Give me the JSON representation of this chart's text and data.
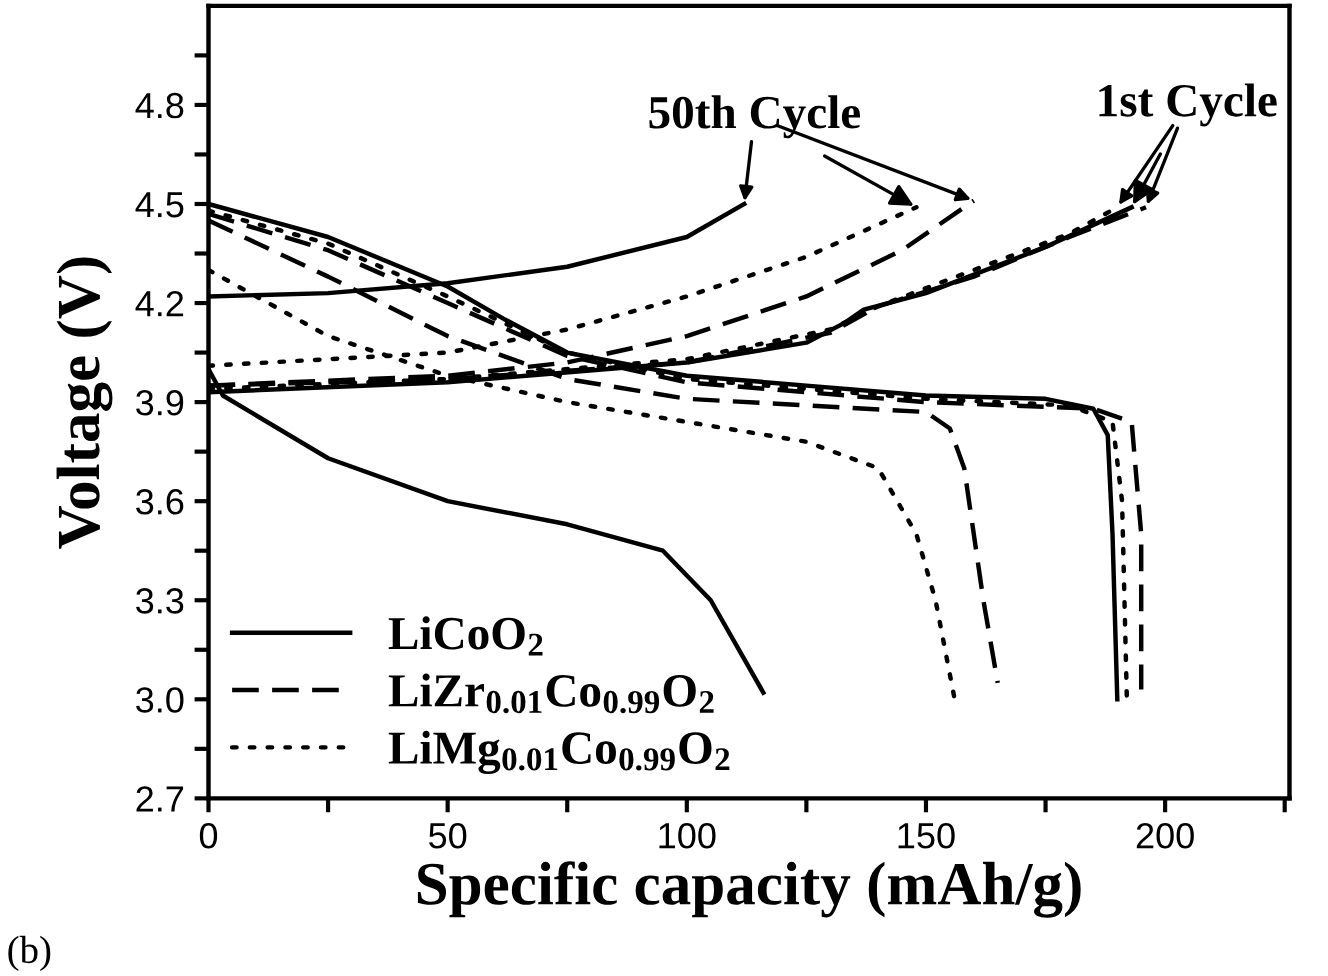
{
  "chart_data": {
    "type": "line",
    "xlabel": "Specific capacity (mAh/g)",
    "ylabel": "Voltage (V)",
    "xlim": [
      0,
      226
    ],
    "ylim": [
      2.7,
      5.1
    ],
    "xticks": [
      0,
      {
        "value": 25,
        "label": null
      },
      50,
      {
        "value": 75,
        "label": null
      },
      100,
      {
        "value": 125,
        "label": null
      },
      150,
      {
        "value": 175,
        "label": null
      },
      200,
      {
        "value": 225,
        "label": null
      }
    ],
    "yticks": [
      2.7,
      {
        "value": 2.85,
        "label": null
      },
      {
        "value": 3.0,
        "label": "3.0"
      },
      {
        "value": 3.15,
        "label": null
      },
      3.3,
      {
        "value": 3.45,
        "label": null
      },
      3.6,
      {
        "value": 3.75,
        "label": null
      },
      3.9,
      {
        "value": 4.05,
        "label": null
      },
      4.2,
      {
        "value": 4.35,
        "label": null
      },
      4.5,
      {
        "value": 4.65,
        "label": null
      },
      4.8,
      {
        "value": 4.95,
        "label": null
      }
    ],
    "grid": false,
    "legend": "bottom left",
    "marker": "none",
    "series": [
      {
        "name": "LiCoO$_{2}$",
        "color": "#000000",
        "line_style": "solid",
        "x": [
          0,
          50,
          100,
          125,
          133,
          137,
          150,
          175,
          190,
          193
        ],
        "values": [
          3.93,
          3.96,
          4.02,
          4.08,
          4.14,
          4.18,
          4.23,
          4.37,
          4.47,
          4.49
        ]
      },
      {
        "name": "LiZr$_{0.01}$Co$_{0.99}$O$_{2}$",
        "color": "#000000",
        "line_style": "dashed",
        "x": [
          0,
          50,
          100,
          130,
          140,
          160,
          180,
          196
        ],
        "values": [
          3.95,
          3.97,
          4.02,
          4.11,
          4.19,
          4.28,
          4.4,
          4.49
        ]
      },
      {
        "name": "LiMg$_{0.01}$Co$_{0.99}$O$_{2}$",
        "color": "#000000",
        "line_style": "dotted",
        "x": [
          0,
          50,
          100,
          130,
          140,
          160,
          180,
          190
        ],
        "values": [
          3.94,
          3.97,
          4.03,
          4.12,
          4.19,
          4.3,
          4.41,
          4.49
        ]
      },
      {
        "color": "#000000",
        "line_style": "solid",
        "x": [
          0,
          25,
          50,
          75,
          100,
          112
        ],
        "values": [
          4.22,
          4.23,
          4.26,
          4.31,
          4.4,
          4.5
        ]
      },
      {
        "color": "#000000",
        "line_style": "dashed",
        "x": [
          0,
          50,
          75,
          100,
          125,
          145,
          160
        ],
        "values": [
          3.95,
          3.98,
          4.02,
          4.1,
          4.22,
          4.36,
          4.51
        ]
      },
      {
        "color": "#000000",
        "line_style": "dotted",
        "x": [
          0,
          50,
          75,
          100,
          125,
          148
        ],
        "values": [
          4.01,
          4.05,
          4.12,
          4.22,
          4.34,
          4.49
        ]
      },
      {
        "color": "#000000",
        "line_style": "solid",
        "x": [
          0,
          25,
          50,
          62,
          75,
          100,
          125,
          150,
          175,
          185,
          188,
          189,
          190
        ],
        "values": [
          4.5,
          4.4,
          4.25,
          4.15,
          4.05,
          3.98,
          3.95,
          3.92,
          3.91,
          3.88,
          3.8,
          3.5,
          3.0
        ]
      },
      {
        "color": "#000000",
        "line_style": "dashed",
        "x": [
          0,
          25,
          50,
          75,
          100,
          150,
          185,
          193,
          195,
          195
        ],
        "values": [
          4.47,
          4.36,
          4.2,
          4.04,
          3.96,
          3.9,
          3.88,
          3.84,
          3.5,
          3.03
        ]
      },
      {
        "color": "#000000",
        "line_style": "dotted",
        "x": [
          0,
          25,
          50,
          75,
          100,
          150,
          180,
          189,
          191,
          192
        ],
        "values": [
          4.48,
          4.38,
          4.22,
          4.05,
          3.97,
          3.91,
          3.89,
          3.84,
          3.6,
          3.0
        ]
      },
      {
        "color": "#000000",
        "line_style": "solid",
        "x": [
          0,
          3,
          25,
          50,
          75,
          95,
          105,
          116
        ],
        "values": [
          4.0,
          3.92,
          3.73,
          3.6,
          3.53,
          3.45,
          3.3,
          3.02
        ]
      },
      {
        "color": "#000000",
        "line_style": "dashed",
        "x": [
          0,
          25,
          50,
          75,
          100,
          125,
          150,
          155,
          158,
          162,
          165
        ],
        "values": [
          4.45,
          4.28,
          4.1,
          3.97,
          3.91,
          3.89,
          3.87,
          3.82,
          3.7,
          3.3,
          3.05
        ]
      },
      {
        "color": "#000000",
        "line_style": "dotted",
        "x": [
          0,
          25,
          50,
          75,
          100,
          125,
          140,
          148,
          152,
          156
        ],
        "values": [
          4.3,
          4.1,
          3.98,
          3.9,
          3.84,
          3.78,
          3.7,
          3.5,
          3.3,
          3.0
        ]
      }
    ],
    "annotations": [
      {
        "text": "50th Cycle",
        "x": 148,
        "y": 4.49
      },
      {
        "text": "1st Cycle",
        "x": 193,
        "y": 4.49
      },
      "(b)"
    ]
  }
}
